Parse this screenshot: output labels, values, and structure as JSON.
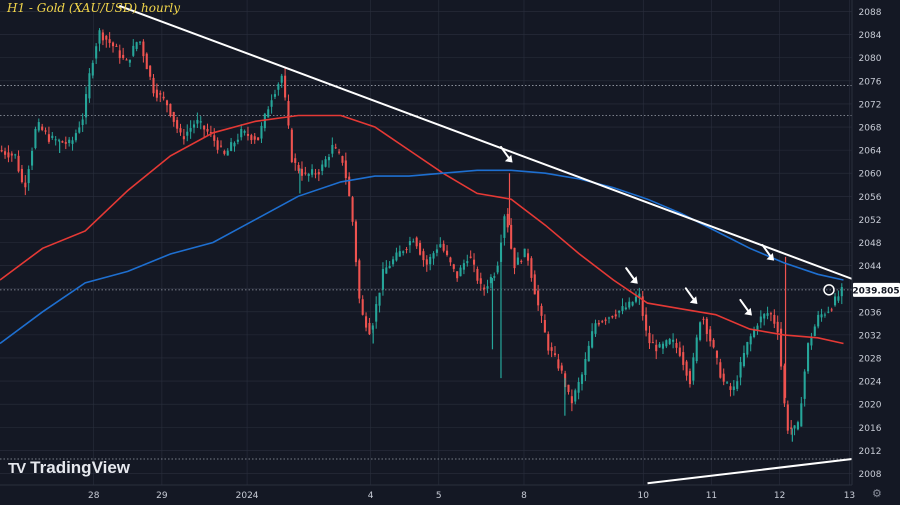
{
  "title": "H1 - Gold (XAU/USD) hourly",
  "brand": {
    "name": "TradingView",
    "mark": "TV"
  },
  "settings_icon": "gear-icon",
  "colors": {
    "background": "#141824",
    "grid": "#2a2f3d",
    "candle_up": "#26a69a",
    "candle_down": "#ef5350",
    "ma_red": "#e53935",
    "ma_blue": "#1e6fd0",
    "trendline": "#ffffff",
    "axis_text": "#c8ccd6",
    "price_label_bg": "#ffffff"
  },
  "chart_data": {
    "type": "candlestick",
    "title": "H1 - Gold (XAU/USD) hourly",
    "ylim": [
      2006,
      2090
    ],
    "y_ticks": [
      2008,
      2012,
      2016,
      2020,
      2024,
      2028,
      2032,
      2036,
      2040,
      2044,
      2048,
      2052,
      2056,
      2060,
      2064,
      2068,
      2072,
      2076,
      2080,
      2084,
      2088
    ],
    "x_ticks": [
      {
        "label": "28",
        "x": 0.11
      },
      {
        "label": "29",
        "x": 0.19
      },
      {
        "label": "2024",
        "x": 0.29
      },
      {
        "label": "4",
        "x": 0.435
      },
      {
        "label": "5",
        "x": 0.515
      },
      {
        "label": "8",
        "x": 0.615
      },
      {
        "label": "10",
        "x": 0.755
      },
      {
        "label": "11",
        "x": 0.835
      },
      {
        "label": "12",
        "x": 0.915
      },
      {
        "label": "13",
        "x": 0.997
      }
    ],
    "current_price": {
      "label": "2039.805",
      "value": 2039.805
    },
    "reference_levels": [
      2075.2,
      2070.0,
      2039.8,
      2010.5
    ],
    "price_path": [
      [
        0.0,
        2064.0
      ],
      [
        0.02,
        2063.0
      ],
      [
        0.03,
        2057.0
      ],
      [
        0.045,
        2068.5
      ],
      [
        0.06,
        2066.0
      ],
      [
        0.085,
        2065.0
      ],
      [
        0.1,
        2070.0
      ],
      [
        0.108,
        2078.0
      ],
      [
        0.118,
        2084.5
      ],
      [
        0.135,
        2082.0
      ],
      [
        0.15,
        2079.0
      ],
      [
        0.165,
        2083.5
      ],
      [
        0.182,
        2074.5
      ],
      [
        0.198,
        2072.0
      ],
      [
        0.215,
        2066.0
      ],
      [
        0.232,
        2069.0
      ],
      [
        0.25,
        2066.5
      ],
      [
        0.265,
        2063.0
      ],
      [
        0.285,
        2067.0
      ],
      [
        0.305,
        2066.0
      ],
      [
        0.32,
        2073.0
      ],
      [
        0.333,
        2077.0
      ],
      [
        0.345,
        2062.0
      ],
      [
        0.36,
        2059.5
      ],
      [
        0.378,
        2060.5
      ],
      [
        0.392,
        2064.5
      ],
      [
        0.405,
        2062.0
      ],
      [
        0.415,
        2053.0
      ],
      [
        0.425,
        2036.0
      ],
      [
        0.437,
        2032.5
      ],
      [
        0.452,
        2043.0
      ],
      [
        0.47,
        2046.0
      ],
      [
        0.488,
        2049.0
      ],
      [
        0.502,
        2044.0
      ],
      [
        0.518,
        2048.0
      ],
      [
        0.538,
        2042.0
      ],
      [
        0.552,
        2046.0
      ],
      [
        0.568,
        2039.5
      ],
      [
        0.585,
        2043.5
      ],
      [
        0.595,
        2054.0
      ],
      [
        0.605,
        2044.0
      ],
      [
        0.62,
        2046.5
      ],
      [
        0.632,
        2038.0
      ],
      [
        0.645,
        2030.0
      ],
      [
        0.66,
        2026.0
      ],
      [
        0.672,
        2020.0
      ],
      [
        0.685,
        2025.0
      ],
      [
        0.7,
        2034.0
      ],
      [
        0.72,
        2035.5
      ],
      [
        0.74,
        2037.0
      ],
      [
        0.752,
        2039.0
      ],
      [
        0.762,
        2031.0
      ],
      [
        0.775,
        2029.5
      ],
      [
        0.79,
        2031.0
      ],
      [
        0.8,
        2029.0
      ],
      [
        0.812,
        2024.0
      ],
      [
        0.825,
        2036.0
      ],
      [
        0.838,
        2030.0
      ],
      [
        0.85,
        2024.0
      ],
      [
        0.862,
        2022.0
      ],
      [
        0.878,
        2030.0
      ],
      [
        0.892,
        2034.5
      ],
      [
        0.905,
        2036.0
      ],
      [
        0.915,
        2033.0
      ],
      [
        0.925,
        2016.0
      ],
      [
        0.938,
        2015.5
      ],
      [
        0.95,
        2030.0
      ],
      [
        0.962,
        2035.0
      ],
      [
        0.975,
        2036.5
      ],
      [
        0.99,
        2039.5
      ]
    ],
    "spikes": [
      {
        "x": 0.07,
        "low": 2063.5
      },
      {
        "x": 0.352,
        "low": 2056.5
      },
      {
        "x": 0.438,
        "low": 2030.5
      },
      {
        "x": 0.578,
        "low": 2029.5
      },
      {
        "x": 0.588,
        "low": 2024.5
      },
      {
        "x": 0.598,
        "high": 2060.0
      },
      {
        "x": 0.663,
        "low": 2018.0
      },
      {
        "x": 0.922,
        "high": 2045.5
      },
      {
        "x": 0.93,
        "low": 2013.5
      }
    ],
    "red_ma": [
      [
        0.0,
        2041.5
      ],
      [
        0.05,
        2047.0
      ],
      [
        0.1,
        2050.0
      ],
      [
        0.15,
        2057.0
      ],
      [
        0.2,
        2063.0
      ],
      [
        0.25,
        2067.0
      ],
      [
        0.3,
        2069.0
      ],
      [
        0.35,
        2070.0
      ],
      [
        0.4,
        2070.0
      ],
      [
        0.44,
        2068.0
      ],
      [
        0.48,
        2064.0
      ],
      [
        0.52,
        2060.0
      ],
      [
        0.56,
        2056.5
      ],
      [
        0.6,
        2055.5
      ],
      [
        0.64,
        2051.0
      ],
      [
        0.68,
        2046.0
      ],
      [
        0.72,
        2041.5
      ],
      [
        0.76,
        2037.5
      ],
      [
        0.8,
        2036.5
      ],
      [
        0.84,
        2035.5
      ],
      [
        0.88,
        2033.0
      ],
      [
        0.92,
        2032.0
      ],
      [
        0.96,
        2031.5
      ],
      [
        0.99,
        2030.5
      ]
    ],
    "blue_ma": [
      [
        0.0,
        2030.5
      ],
      [
        0.05,
        2036.0
      ],
      [
        0.1,
        2041.0
      ],
      [
        0.15,
        2043.0
      ],
      [
        0.2,
        2046.0
      ],
      [
        0.25,
        2048.0
      ],
      [
        0.3,
        2052.0
      ],
      [
        0.35,
        2056.0
      ],
      [
        0.4,
        2058.5
      ],
      [
        0.44,
        2059.5
      ],
      [
        0.48,
        2059.5
      ],
      [
        0.52,
        2060.0
      ],
      [
        0.56,
        2060.5
      ],
      [
        0.6,
        2060.5
      ],
      [
        0.64,
        2060.0
      ],
      [
        0.68,
        2059.0
      ],
      [
        0.72,
        2057.5
      ],
      [
        0.76,
        2055.5
      ],
      [
        0.8,
        2053.0
      ],
      [
        0.84,
        2050.0
      ],
      [
        0.88,
        2047.0
      ],
      [
        0.92,
        2044.5
      ],
      [
        0.96,
        2042.5
      ],
      [
        0.99,
        2041.5
      ]
    ],
    "trendlines": [
      {
        "from": [
          0.14,
          2089.0
        ],
        "to": [
          1.0,
          2041.7
        ]
      },
      {
        "from": [
          0.76,
          2006.3
        ],
        "to": [
          1.0,
          2010.5
        ]
      }
    ],
    "markers": [
      {
        "type": "arrow",
        "at": [
          0.595,
          2063.0
        ]
      },
      {
        "type": "arrow",
        "at": [
          0.742,
          2042.0
        ]
      },
      {
        "type": "arrow",
        "at": [
          0.812,
          2038.5
        ]
      },
      {
        "type": "arrow",
        "at": [
          0.876,
          2036.5
        ]
      },
      {
        "type": "arrow",
        "at": [
          0.902,
          2046.0
        ]
      },
      {
        "type": "circle",
        "at": [
          0.973,
          2039.8
        ]
      }
    ]
  }
}
